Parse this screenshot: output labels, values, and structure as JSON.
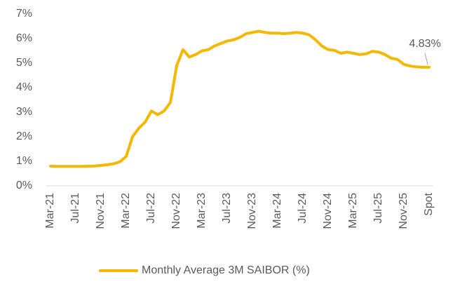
{
  "chart_data": {
    "type": "line",
    "categories": [
      "Mar-21",
      null,
      null,
      null,
      "Jul-21",
      null,
      null,
      null,
      "Nov-21",
      null,
      null,
      null,
      "Mar-22",
      null,
      null,
      null,
      "Jul-22",
      null,
      null,
      null,
      "Nov-22",
      null,
      null,
      null,
      "Mar-23",
      null,
      null,
      null,
      "Jul-23",
      null,
      null,
      null,
      "Nov-23",
      null,
      null,
      null,
      "Mar-24",
      null,
      null,
      null,
      "Jul-24",
      null,
      null,
      null,
      "Nov-24",
      null,
      null,
      null,
      "Mar-25",
      null,
      null,
      null,
      "Jul-25",
      null,
      null,
      null,
      "Nov-25",
      null,
      null,
      null,
      "Spot"
    ],
    "series": [
      {
        "name": "Monthly Average 3M SAIBOR (%)",
        "color": "#F5B800",
        "values": [
          0.8,
          0.79,
          0.79,
          0.79,
          0.79,
          0.79,
          0.8,
          0.81,
          0.83,
          0.86,
          0.9,
          0.98,
          1.2,
          2.0,
          2.35,
          2.6,
          3.05,
          2.9,
          3.05,
          3.4,
          4.9,
          5.55,
          5.25,
          5.35,
          5.5,
          5.55,
          5.7,
          5.8,
          5.9,
          5.95,
          6.05,
          6.2,
          6.25,
          6.3,
          6.25,
          6.22,
          6.22,
          6.2,
          6.22,
          6.25,
          6.22,
          6.15,
          5.95,
          5.7,
          5.55,
          5.52,
          5.4,
          5.45,
          5.4,
          5.35,
          5.38,
          5.48,
          5.45,
          5.35,
          5.2,
          5.15,
          4.95,
          4.88,
          4.85,
          4.83,
          4.83
        ],
        "value_labels": [
          null,
          null,
          null,
          null,
          null,
          null,
          null,
          null,
          null,
          null,
          null,
          null,
          null,
          null,
          null,
          null,
          null,
          null,
          null,
          null,
          null,
          null,
          null,
          null,
          null,
          null,
          null,
          null,
          null,
          null,
          null,
          null,
          null,
          null,
          null,
          null,
          null,
          null,
          null,
          null,
          null,
          null,
          null,
          null,
          null,
          null,
          null,
          null,
          null,
          null,
          null,
          null,
          null,
          null,
          null,
          null,
          null,
          null,
          null,
          null,
          "4.83%"
        ]
      }
    ],
    "ylim": [
      0,
      7
    ],
    "yticks": [
      {
        "value": 0,
        "label": "0%"
      },
      {
        "value": 1,
        "label": "1%"
      },
      {
        "value": 2,
        "label": "2%"
      },
      {
        "value": 3,
        "label": "3%"
      },
      {
        "value": 4,
        "label": "4%"
      },
      {
        "value": 5,
        "label": "5%"
      },
      {
        "value": 6,
        "label": "6%"
      },
      {
        "value": 7,
        "label": "7%"
      }
    ],
    "grid": false,
    "legend": "bottom"
  }
}
